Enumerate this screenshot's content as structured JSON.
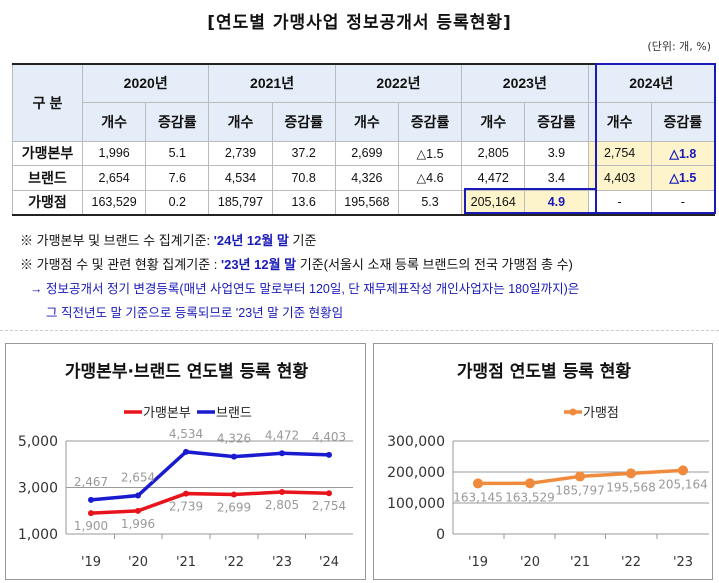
{
  "title": "[연도별 가맹사업 정보공개서 등록현황]",
  "unit": "(단위: 개, %)",
  "table": {
    "corner": "구 분",
    "years": [
      "2020년",
      "2021년",
      "2022년",
      "2023년",
      "2024년"
    ],
    "subheaders": [
      "개수",
      "증감률"
    ],
    "rows": [
      {
        "label": "가맹본부",
        "cells": [
          "1,996",
          "5.1",
          "2,739",
          "37.2",
          "2,699",
          "△1.5",
          "2,805",
          "3.9",
          "2,754",
          "△1.8"
        ]
      },
      {
        "label": "브랜드",
        "cells": [
          "2,654",
          "7.6",
          "4,534",
          "70.8",
          "4,326",
          "△4.6",
          "4,472",
          "3.4",
          "4,403",
          "△1.5"
        ]
      },
      {
        "label": "가맹점",
        "cells": [
          "163,529",
          "0.2",
          "185,797",
          "13.6",
          "195,568",
          "5.3",
          "205,164",
          "4.9",
          "-",
          "-"
        ]
      }
    ]
  },
  "notes": {
    "n1_prefix": "※ 가맹본부 및 브랜드 수 집계기준: ",
    "n1_bold": "'24년 12월 말",
    "n1_suffix": " 기준",
    "n2_prefix": "※ 가맹점 수 및 관련 현황 집계기준 : ",
    "n2_bold": "'23년 12월 말",
    "n2_suffix": " 기준(서울시 소재 등록 브랜드의 전국 가맹점 총 수)",
    "n3": "→ 정보공개서 정기 변경등록(매년 사업연도 말로부터 120일, 단 재무제표작성 개인사업자는 180일까지)은",
    "n4": "그 직전년도 말 기준으로 등록되므로 '23년 말 기준 현황임"
  },
  "chart_data": [
    {
      "type": "line",
      "title": "가맹본부·브랜드 연도별 등록 현황",
      "categories": [
        "'19",
        "'20",
        "'21",
        "'22",
        "'23",
        "'24"
      ],
      "series": [
        {
          "name": "가맹본부",
          "color": "#e8141c",
          "values": [
            1900,
            1996,
            2739,
            2699,
            2805,
            2754
          ]
        },
        {
          "name": "브랜드",
          "color": "#1a1ad0",
          "values": [
            2467,
            2654,
            4534,
            4326,
            4472,
            4403
          ]
        }
      ],
      "ylim": [
        1000,
        5000
      ],
      "yticks": [
        "1,000",
        "3,000",
        "5,000"
      ],
      "ytick_values": [
        1000,
        3000,
        5000
      ],
      "grid": true,
      "legend": "top"
    },
    {
      "type": "line",
      "title": "가맹점 연도별 등록 현황",
      "categories": [
        "'19",
        "'20",
        "'21",
        "'22",
        "'23"
      ],
      "series": [
        {
          "name": "가맹점",
          "color": "#f08a3c",
          "values": [
            163145,
            163529,
            185797,
            195568,
            205164
          ]
        }
      ],
      "ylim": [
        0,
        300000
      ],
      "yticks": [
        "0",
        "100,000",
        "200,000",
        "300,000"
      ],
      "ytick_values": [
        0,
        100000,
        200000,
        300000
      ],
      "grid": true,
      "legend": "top"
    }
  ]
}
